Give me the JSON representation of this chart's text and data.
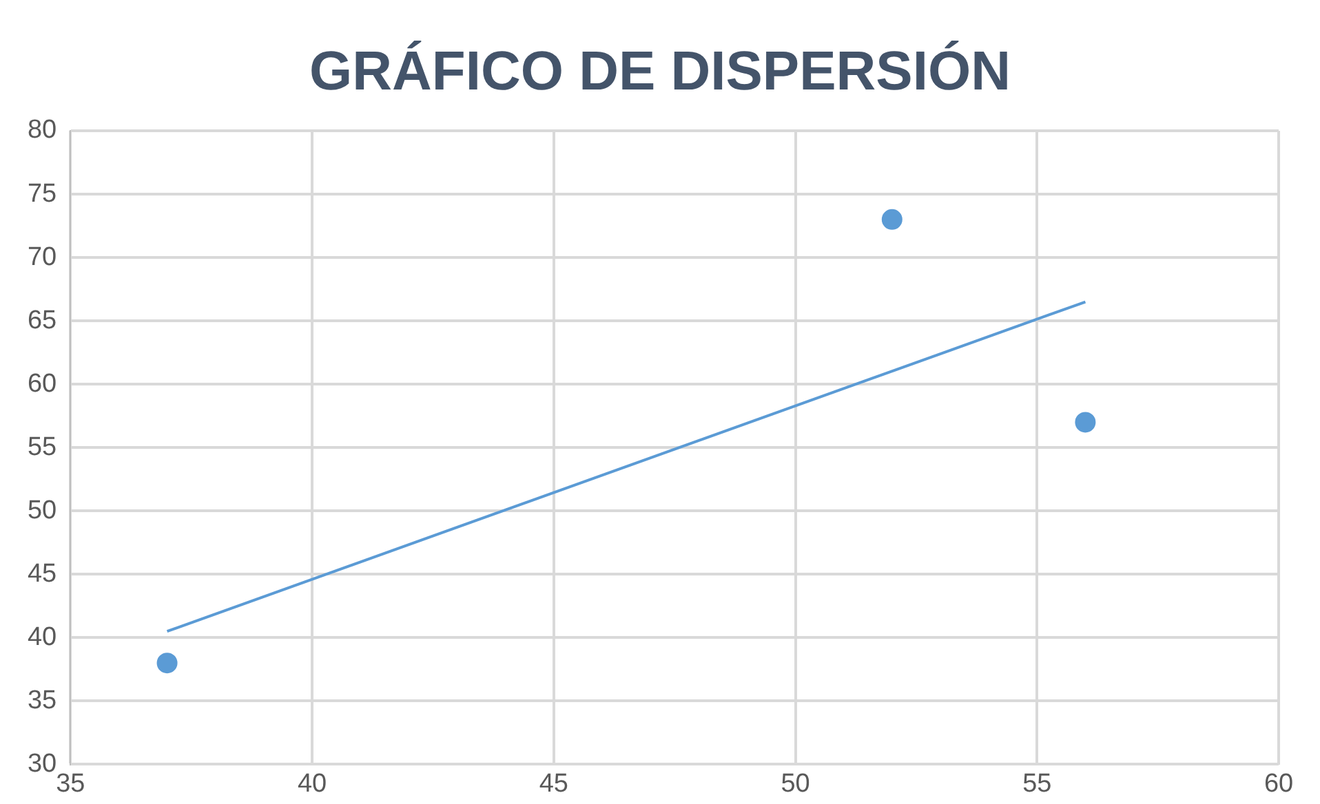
{
  "chart_data": {
    "type": "scatter",
    "title": "GRÁFICO DE DISPERSIÓN",
    "xlim": [
      35,
      60
    ],
    "xticks": [
      35,
      40,
      45,
      50,
      55,
      60
    ],
    "ylim": [
      30,
      80
    ],
    "yticks": [
      30,
      35,
      40,
      45,
      50,
      55,
      60,
      65,
      70,
      75,
      80
    ],
    "grid": true,
    "legend": false,
    "series": [
      {
        "color": "#5b9bd5",
        "marker": "circle",
        "x": [
          37,
          52,
          56
        ],
        "values": [
          38,
          73,
          57
        ]
      },
      {
        "type": "line",
        "color": "#5b9bd5",
        "marker": "none",
        "line_style": "solid",
        "x": [
          37,
          56
        ],
        "values": [
          40.5,
          66.5
        ]
      }
    ]
  }
}
